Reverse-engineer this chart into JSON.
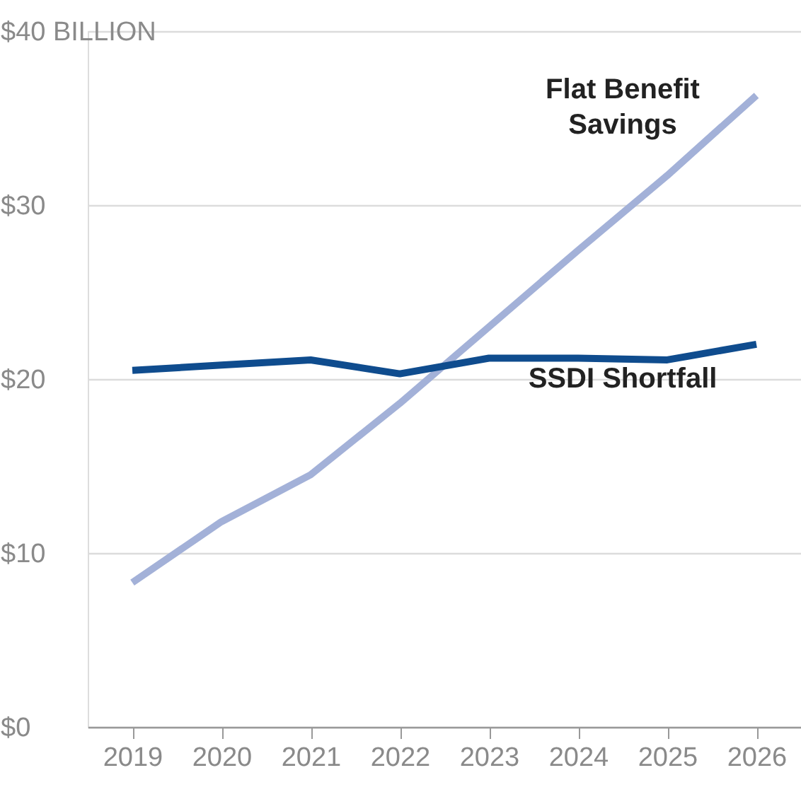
{
  "chart_data": {
    "type": "line",
    "categories": [
      "2019",
      "2020",
      "2021",
      "2022",
      "2023",
      "2024",
      "2025",
      "2026"
    ],
    "series": [
      {
        "name": "Flat Benefit Savings",
        "color": "#a3b1d8",
        "values": [
          8.3,
          11.8,
          14.5,
          18.6,
          23.0,
          27.4,
          31.7,
          36.3
        ]
      },
      {
        "name": "SSDI Shortfall",
        "color": "#0f4c8e",
        "values": [
          20.5,
          20.8,
          21.1,
          20.3,
          21.2,
          21.2,
          21.1,
          22.0
        ]
      }
    ],
    "ylim": [
      0,
      40
    ],
    "yticks": [
      {
        "value": 0,
        "label": "$0"
      },
      {
        "value": 10,
        "label": "$10"
      },
      {
        "value": 20,
        "label": "$20"
      },
      {
        "value": 30,
        "label": "$30"
      },
      {
        "value": 40,
        "label": "$40 BILLION"
      }
    ],
    "grid": "y",
    "marker": "none",
    "line_style": "solid"
  }
}
